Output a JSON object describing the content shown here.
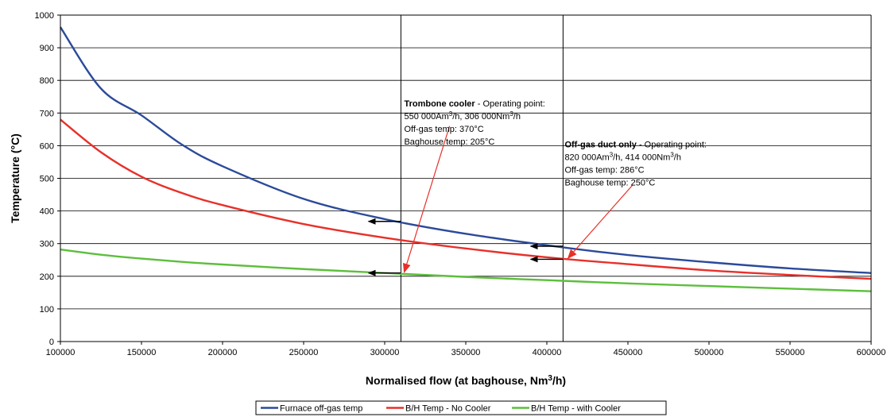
{
  "chart_data": {
    "type": "line",
    "title": "",
    "xlabel": "Normalised flow (at baghouse, Nm",
    "xlabel_sup": "3",
    "xlabel_tail": "/h)",
    "ylabel": "Temperature (°C)",
    "xlim": [
      100000,
      600000
    ],
    "ylim": [
      0,
      1000
    ],
    "x_ticks": [
      100000,
      150000,
      200000,
      250000,
      300000,
      350000,
      400000,
      450000,
      500000,
      550000,
      600000
    ],
    "x_tick_labels": [
      "100000",
      "150000",
      "200000",
      "250000",
      "300000",
      "350000",
      "400000",
      "450000",
      "500000",
      "550000",
      "600000"
    ],
    "y_ticks": [
      0,
      100,
      200,
      300,
      400,
      500,
      600,
      700,
      800,
      900,
      1000
    ],
    "y_tick_labels": [
      "0",
      "100",
      "200",
      "300",
      "400",
      "500",
      "600",
      "700",
      "800",
      "900",
      "1000"
    ],
    "grid": "horizontal",
    "legend_position": "bottom",
    "x": [
      100000,
      125000,
      150000,
      175000,
      200000,
      250000,
      300000,
      350000,
      400000,
      450000,
      500000,
      550000,
      600000
    ],
    "series": [
      {
        "name": "Furnace off-gas temp",
        "color": "#2b4a9a",
        "values": [
          963,
          775,
          693,
          603,
          537,
          437,
          375,
          330,
          295,
          265,
          243,
          224,
          210
        ]
      },
      {
        "name": "B/H Temp - No Cooler",
        "color": "#e8302a",
        "values": [
          680,
          580,
          505,
          455,
          418,
          360,
          318,
          285,
          258,
          237,
          218,
          204,
          192
        ]
      },
      {
        "name": "B/H Temp - with Cooler",
        "color": "#5cbf3c",
        "values": [
          282,
          266,
          254,
          244,
          236,
          222,
          210,
          198,
          188,
          178,
          170,
          162,
          154
        ]
      }
    ],
    "vertical_lines": [
      310000,
      410000
    ],
    "arrows": [
      {
        "from": [
          310000,
          368
        ],
        "to": [
          290000,
          368
        ]
      },
      {
        "from": [
          310000,
          210
        ],
        "to": [
          290000,
          210
        ]
      },
      {
        "from": [
          410000,
          292
        ],
        "to": [
          390000,
          292
        ]
      },
      {
        "from": [
          410000,
          252
        ],
        "to": [
          390000,
          252
        ]
      }
    ],
    "pointer_lines": [
      {
        "from": [
          340000,
          660
        ],
        "to": [
          312000,
          212
        ]
      },
      {
        "from": [
          453000,
          480
        ],
        "to": [
          413000,
          255
        ]
      }
    ],
    "annotations": [
      {
        "anchor": [
          312000,
          720
        ],
        "lines": [
          {
            "bold": "Trombone cooler",
            "text": " - Operating point:"
          },
          {
            "text": "550 000Am",
            "sup": "3",
            "tail": "/h, 306 000Nm",
            "sup2": "3",
            "tail2": "/h"
          },
          {
            "text": "Off-gas temp: 370°C"
          },
          {
            "text": "Baghouse temp: 205°C"
          }
        ]
      },
      {
        "anchor": [
          411000,
          595
        ],
        "lines": [
          {
            "bold": "Off-gas duct only",
            "text": " - Operating point:"
          },
          {
            "text": "820 000Am",
            "sup": "3",
            "tail": "/h, 414 000Nm",
            "sup2": "3",
            "tail2": "/h"
          },
          {
            "text": "Off-gas temp: 286°C"
          },
          {
            "text": "Baghouse temp: 250°C"
          }
        ]
      }
    ]
  }
}
